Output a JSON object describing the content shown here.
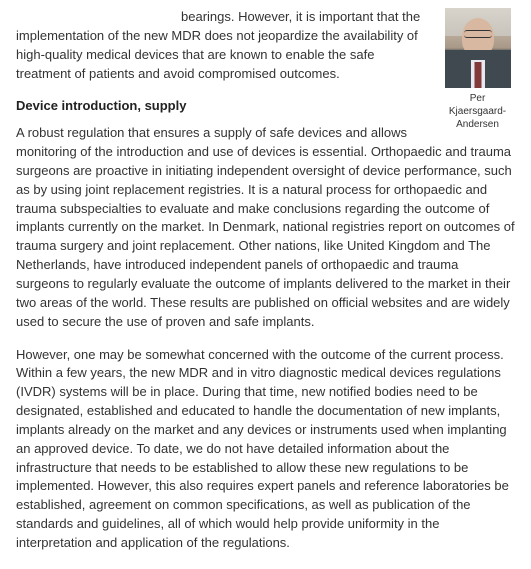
{
  "photo_caption_line1": "Per",
  "photo_caption_line2": "Kjaersgaard-",
  "photo_caption_line3": "Andersen",
  "lead": "bearings. However, it is important that the implementation of the new MDR does not jeopardize the availability of high-quality medical devices that are known to enable the safe treatment of patients and avoid compromised outcomes.",
  "heading": "Device introduction, supply",
  "para1": "A robust regulation that ensures a supply of safe devices and allows monitoring of the introduction and use of devices is essential. Orthopaedic and trauma surgeons are proactive in initiating independent oversight of device performance, such as by using joint replacement registries. It is a natural process for orthopaedic and trauma subspecialties to evaluate and make conclusions regarding the outcome of implants currently on the market. In Denmark, national registries report on outcomes of trauma surgery and joint replacement. Other nations, like United Kingdom and The Netherlands, have introduced independent panels of orthopaedic and trauma surgeons to regularly evaluate the outcome of implants delivered to the market in their two areas of the world. These results are published on official websites and are widely used to secure the use of proven and safe implants.",
  "para2": "However, one may be somewhat concerned with the outcome of the current process. Within a few years, the new MDR and in vitro diagnostic medical devices regulations (IVDR) systems will be in place. During that time, new notified bodies need to be designated, established and educated to handle the documentation of new implants, implants already on the market and any devices or instruments used when implanting an approved device. To date, we do not have detailed information about the infrastructure that needs to be established to allow these new regulations to be implemented. However, this also requires expert panels and reference laboratories be established, agreement on common specifications, as well as publication of the standards and guidelines, all of which would help provide uniformity in the interpretation and application of the regulations."
}
